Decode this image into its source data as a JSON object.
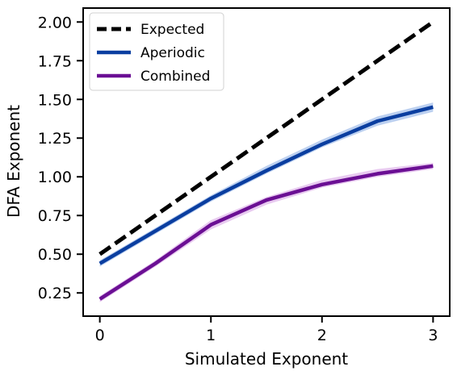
{
  "chart_data": {
    "type": "line",
    "xlabel": "Simulated Exponent",
    "ylabel": "DFA Exponent",
    "xlim": [
      -0.15,
      3.15
    ],
    "ylim": [
      0.1,
      2.09
    ],
    "xticks": [
      0,
      1,
      2,
      3
    ],
    "yticks": [
      0.25,
      0.5,
      0.75,
      1.0,
      1.25,
      1.5,
      1.75,
      2.0
    ],
    "xtick_labels": [
      "0",
      "1",
      "2",
      "3"
    ],
    "ytick_labels": [
      "0.25",
      "0.50",
      "0.75",
      "1.00",
      "1.25",
      "1.50",
      "1.75",
      "2.00"
    ],
    "grid": false,
    "legend_position": "top-left",
    "series": [
      {
        "name": "Expected",
        "color": "#000000",
        "style": "dashed",
        "x": [
          0,
          3
        ],
        "y": [
          0.5,
          2.0
        ],
        "band_lower": null,
        "band_upper": null,
        "band_color": null
      },
      {
        "name": "Aperiodic",
        "color": "#0a3ea0",
        "style": "solid",
        "x": [
          0,
          0.5,
          1,
          1.5,
          2,
          2.5,
          3
        ],
        "y": [
          0.44,
          0.65,
          0.86,
          1.04,
          1.21,
          1.36,
          1.45
        ],
        "band_lower": [
          0.42,
          0.63,
          0.84,
          1.02,
          1.19,
          1.33,
          1.42
        ],
        "band_upper": [
          0.46,
          0.67,
          0.88,
          1.07,
          1.24,
          1.39,
          1.48
        ],
        "band_color": "#8fb0e6"
      },
      {
        "name": "Combined",
        "color": "#6b0f94",
        "style": "solid",
        "x": [
          0,
          0.5,
          1,
          1.5,
          2,
          2.5,
          3
        ],
        "y": [
          0.21,
          0.44,
          0.69,
          0.85,
          0.95,
          1.02,
          1.07
        ],
        "band_lower": [
          0.19,
          0.42,
          0.66,
          0.82,
          0.93,
          1.0,
          1.05
        ],
        "band_upper": [
          0.23,
          0.46,
          0.72,
          0.87,
          0.98,
          1.05,
          1.09
        ],
        "band_color": "#d9a6e6"
      }
    ]
  }
}
